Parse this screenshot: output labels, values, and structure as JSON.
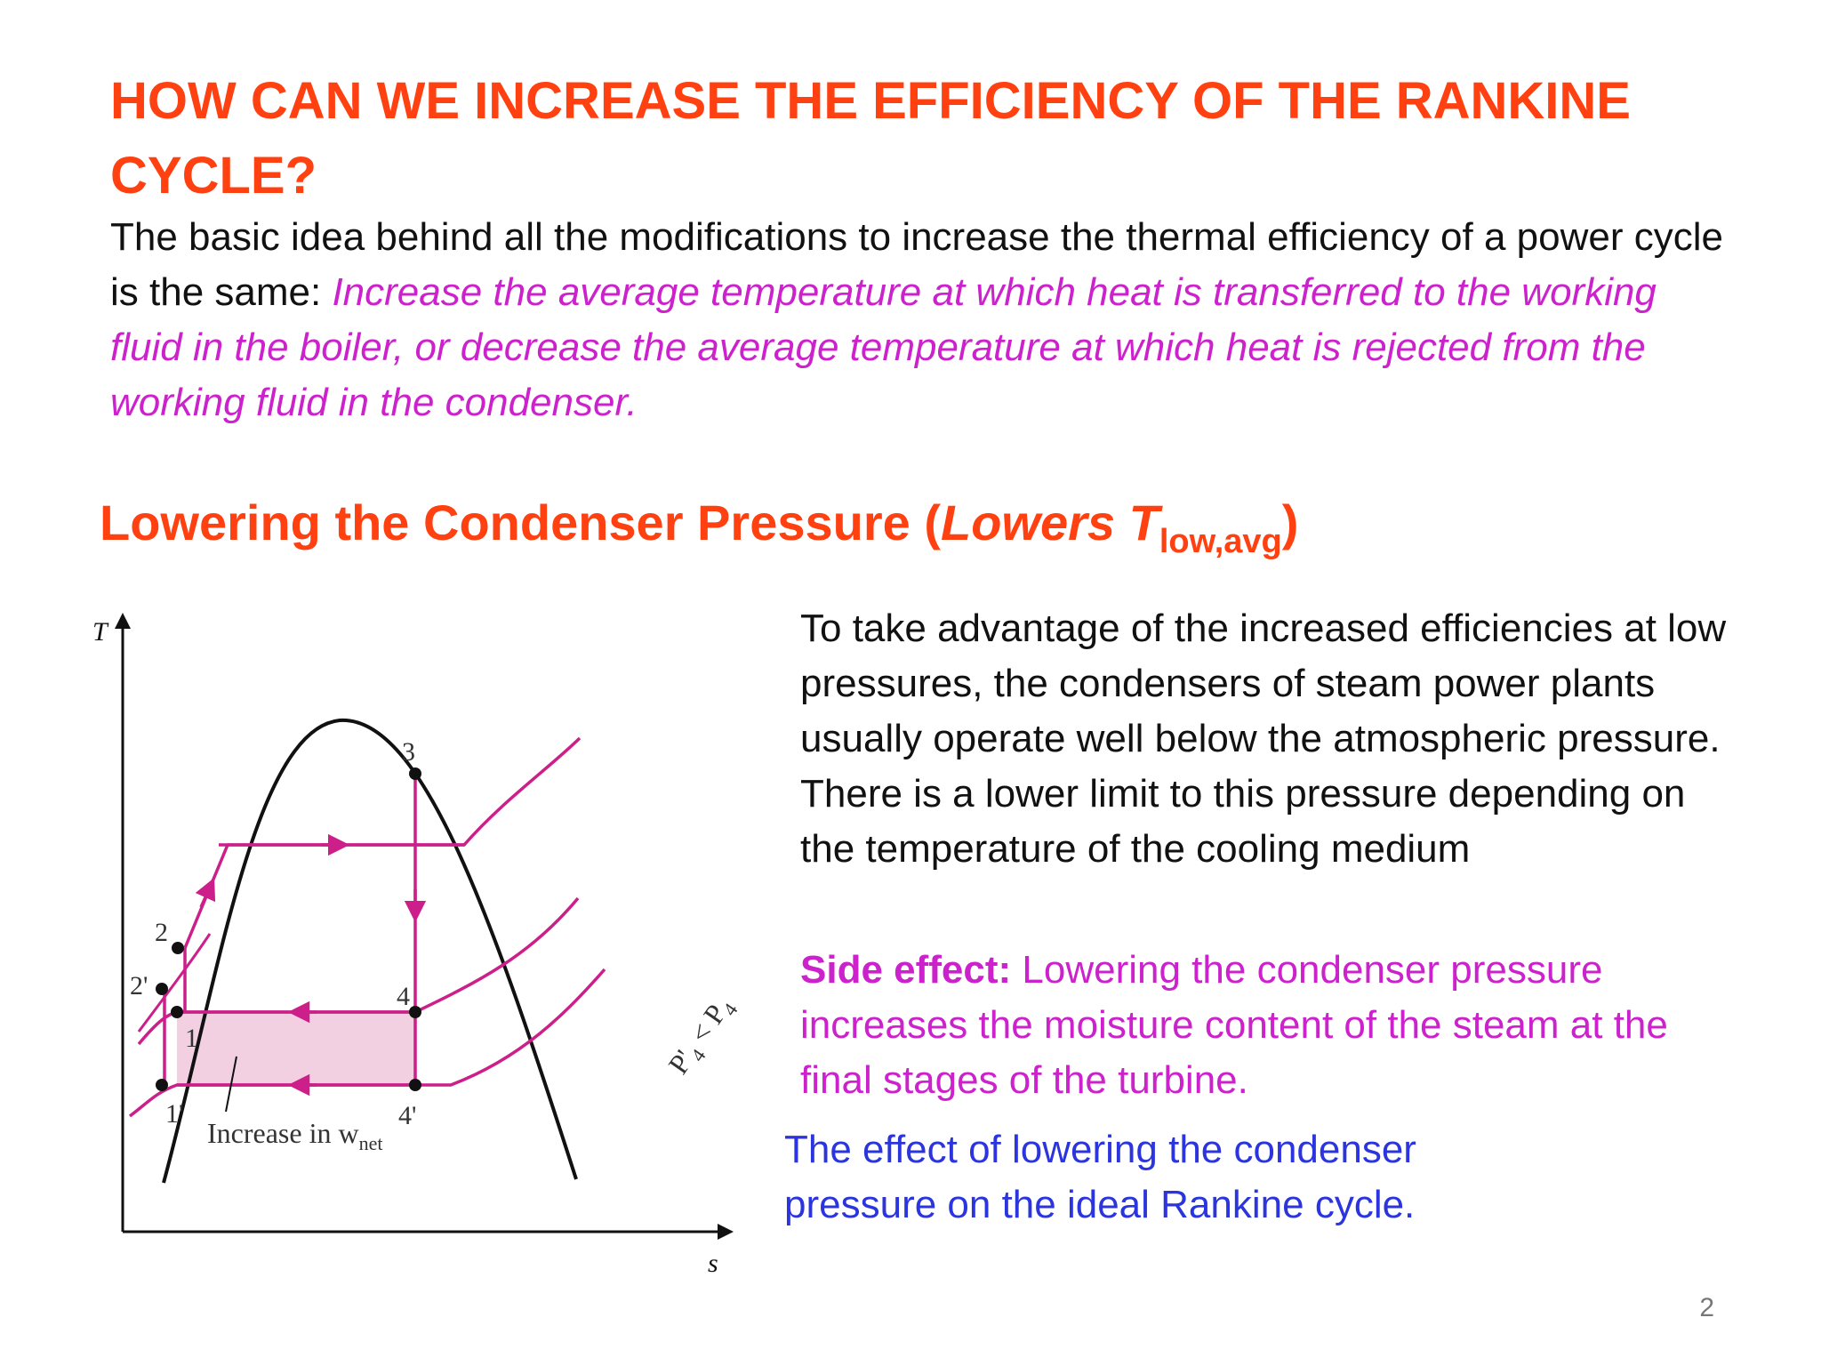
{
  "slide": {
    "title": "HOW CAN WE INCREASE THE EFFICIENCY OF THE RANKINE CYCLE?",
    "intro_plain": "The basic idea behind all the modifications to increase the thermal efficiency of a power cycle is the same: ",
    "intro_emphasis": "Increase the average temperature at which heat is transferred to the working fluid in the boiler, or decrease the average temperature at which heat is rejected from the working fluid in the condenser.",
    "subtitle_main": "Lowering the Condenser Pressure (",
    "subtitle_italic": "Lowers T",
    "subtitle_sub": "low,avg",
    "subtitle_close": ")",
    "body_text": "To take advantage of the increased efficiencies at low pressures, the condensers of steam power plants usually operate well below the atmospheric pressure. There is a lower limit to this pressure depending on the temperature of the cooling medium",
    "side_effect_label": "Side effect:",
    "side_effect_text": " Lowering the condenser pressure increases the moisture content of the steam at the final stages of the turbine.",
    "caption": "The effect of lowering the condenser pressure on the ideal Rankine cycle.",
    "page_number": "2"
  },
  "diagram": {
    "y_axis_label": "T",
    "x_axis_label": "s",
    "points": {
      "p1": "1",
      "p1prime": "1'",
      "p2": "2",
      "p2prime": "2'",
      "p3": "3",
      "p4": "4",
      "p4prime": "4'"
    },
    "region_label": "Increase in w",
    "region_label_sub": "net",
    "pressure_label": "P'",
    "pressure_label_sub1": "4",
    "pressure_compare": " < P",
    "pressure_label_sub2": "4",
    "colors": {
      "cycle": "#cc1f8a",
      "dome": "#111111",
      "fill": "#f2d0e2"
    }
  }
}
